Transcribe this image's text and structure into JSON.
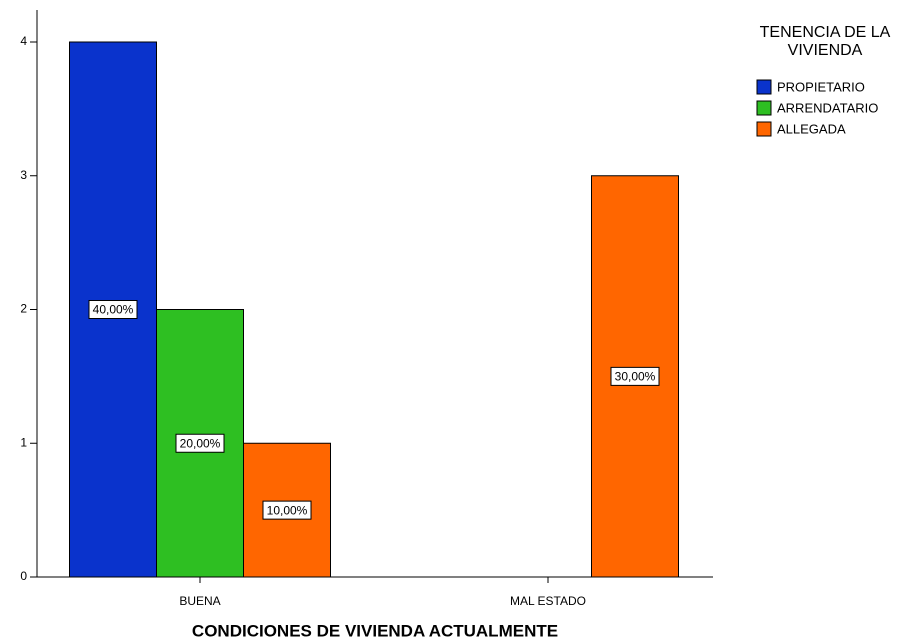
{
  "chart_data": {
    "type": "bar",
    "x_label": "CONDICIONES DE VIVIENDA ACTUALMENTE",
    "legend_title": "TENENCIA DE LA VIVIENDA",
    "categories": [
      "BUENA",
      "MAL ESTADO"
    ],
    "series": [
      {
        "name": "PROPIETARIO",
        "color": "#0a33cc",
        "values": [
          4,
          null
        ],
        "value_labels": [
          "40,00%",
          null
        ]
      },
      {
        "name": "ARRENDATARIO",
        "color": "#2ebf22",
        "values": [
          2,
          null
        ],
        "value_labels": [
          "20,00%",
          null
        ]
      },
      {
        "name": "ALLEGADA",
        "color": "#ff6600",
        "values": [
          1,
          3
        ],
        "value_labels": [
          "10,00%",
          "30,00%"
        ]
      }
    ],
    "ylim": [
      0,
      4
    ],
    "yticks": [
      0,
      1,
      2,
      3,
      4
    ],
    "grid": false,
    "legend": "top-right"
  }
}
